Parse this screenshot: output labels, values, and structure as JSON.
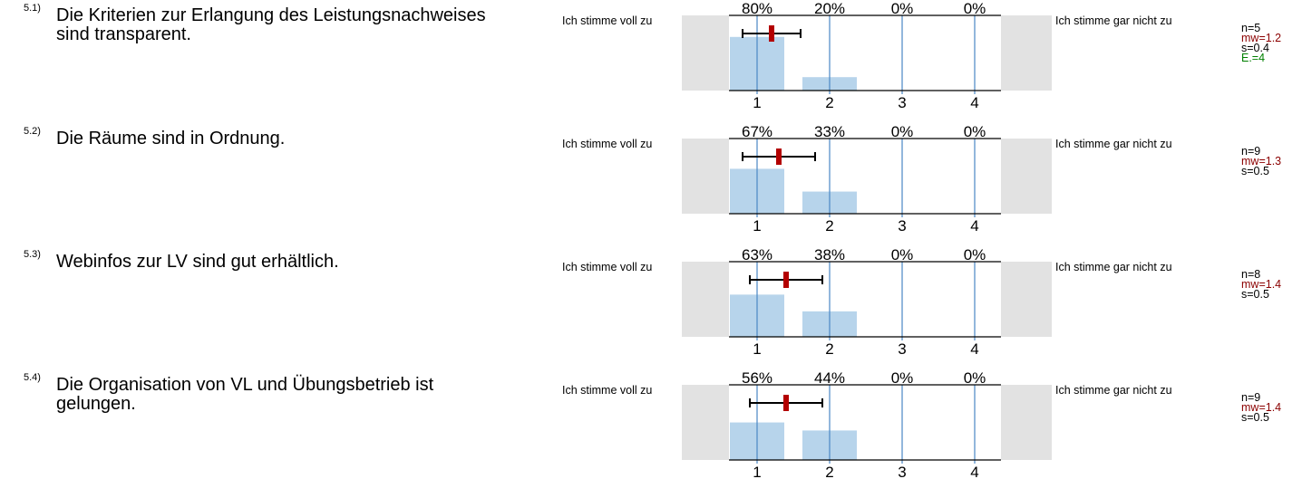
{
  "left_label": "Ich stimme voll zu",
  "right_label": "Ich stimme gar nicht zu",
  "ticks": [
    "1",
    "2",
    "3",
    "4"
  ],
  "colors": {
    "bar": "#b7d4eb",
    "gridline": "#4a87c4",
    "side_box": "#e2e2e2",
    "mean": "#b30000",
    "mw_text": "#8b0000",
    "e_text": "#008000"
  },
  "questions": [
    {
      "num": "5.1)",
      "text": "Die Kriterien zur Erlangung des Leistungsnachweises sind transparent.",
      "pct_labels": [
        "80%",
        "20%",
        "0%",
        "0%"
      ],
      "n": "n=5",
      "mw": "mw=1.2",
      "s": "s=0.4",
      "e": "E.=4"
    },
    {
      "num": "5.2)",
      "text": "Die Räume sind in Ordnung.",
      "pct_labels": [
        "67%",
        "33%",
        "0%",
        "0%"
      ],
      "n": "n=9",
      "mw": "mw=1.3",
      "s": "s=0.5",
      "e": ""
    },
    {
      "num": "5.3)",
      "text": "Webinfos zur LV sind gut erhältlich.",
      "pct_labels": [
        "63%",
        "38%",
        "0%",
        "0%"
      ],
      "n": "n=8",
      "mw": "mw=1.4",
      "s": "s=0.5",
      "e": ""
    },
    {
      "num": "5.4)",
      "text": "Die Organisation von VL und Übungsbetrieb ist gelungen.",
      "pct_labels": [
        "56%",
        "44%",
        "0%",
        "0%"
      ],
      "n": "n=9",
      "mw": "mw=1.4",
      "s": "s=0.5",
      "e": ""
    }
  ],
  "chart_data": [
    {
      "type": "bar",
      "categories": [
        1,
        2,
        3,
        4
      ],
      "values": [
        80,
        20,
        0,
        0
      ],
      "ylim": [
        0,
        100
      ],
      "mean": 1.2,
      "sd": 0.4,
      "n": 5
    },
    {
      "type": "bar",
      "categories": [
        1,
        2,
        3,
        4
      ],
      "values": [
        67,
        33,
        0,
        0
      ],
      "ylim": [
        0,
        100
      ],
      "mean": 1.3,
      "sd": 0.5,
      "n": 9
    },
    {
      "type": "bar",
      "categories": [
        1,
        2,
        3,
        4
      ],
      "values": [
        63,
        38,
        0,
        0
      ],
      "ylim": [
        0,
        100
      ],
      "mean": 1.4,
      "sd": 0.5,
      "n": 8
    },
    {
      "type": "bar",
      "categories": [
        1,
        2,
        3,
        4
      ],
      "values": [
        56,
        44,
        0,
        0
      ],
      "ylim": [
        0,
        100
      ],
      "mean": 1.4,
      "sd": 0.5,
      "n": 9
    }
  ]
}
